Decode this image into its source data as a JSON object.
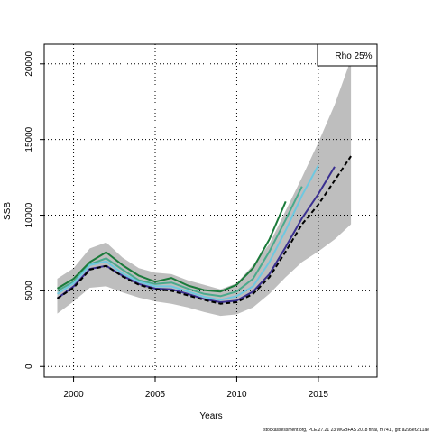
{
  "chart_data": {
    "type": "line",
    "title": "",
    "xlabel": "Years",
    "ylabel": "SSB",
    "xlim": [
      1998.2,
      2018.6
    ],
    "ylim": [
      -700,
      21300
    ],
    "grid": true,
    "x_ticks": [
      2000,
      2005,
      2010,
      2015
    ],
    "y_ticks": [
      0,
      5000,
      10000,
      15000,
      20000
    ],
    "legend": {
      "text": "Rho 25%",
      "position": "top-right"
    },
    "band": {
      "color": "#bebebe",
      "x": [
        1999,
        2000,
        2001,
        2002,
        2003,
        2004,
        2005,
        2006,
        2007,
        2008,
        2009,
        2010,
        2011,
        2012,
        2013,
        2014,
        2015,
        2016,
        2017
      ],
      "lower": [
        3500,
        4300,
        5200,
        5300,
        4900,
        4550,
        4300,
        4150,
        3900,
        3600,
        3350,
        3450,
        3900,
        4800,
        5900,
        6900,
        7600,
        8400,
        9400
      ],
      "upper": [
        5800,
        6500,
        7800,
        8200,
        7200,
        6500,
        6200,
        6100,
        5700,
        5400,
        5100,
        5500,
        6700,
        8100,
        10300,
        12500,
        14800,
        17300,
        20300
      ]
    },
    "series": [
      {
        "color": "#1a7a3a",
        "x": [
          1999,
          2000,
          2001,
          2002,
          2003,
          2004,
          2005,
          2006,
          2007,
          2008,
          2009,
          2010,
          2011,
          2012,
          2013
        ],
        "values": [
          5150,
          5800,
          6900,
          7550,
          6700,
          6000,
          5600,
          5850,
          5350,
          5050,
          4950,
          5400,
          6500,
          8400,
          10900
        ]
      },
      {
        "color": "#4aaa8c",
        "x": [
          1999,
          2000,
          2001,
          2002,
          2003,
          2004,
          2005,
          2006,
          2007,
          2008,
          2009,
          2010,
          2011,
          2012,
          2013,
          2014
        ],
        "values": [
          5000,
          5600,
          6750,
          7150,
          6400,
          5700,
          5450,
          5550,
          5150,
          4800,
          4650,
          4950,
          5800,
          7600,
          9700,
          11900
        ]
      },
      {
        "color": "#6ec8e0",
        "x": [
          1999,
          2000,
          2001,
          2002,
          2003,
          2004,
          2005,
          2006,
          2007,
          2008,
          2009,
          2010,
          2011,
          2012,
          2013,
          2014,
          2015
        ],
        "values": [
          4800,
          5500,
          6700,
          6950,
          6150,
          5600,
          5300,
          5300,
          4950,
          4600,
          4400,
          4650,
          5300,
          6900,
          9000,
          11300,
          13300
        ]
      },
      {
        "color": "#3a2f90",
        "x": [
          1999,
          2000,
          2001,
          2002,
          2003,
          2004,
          2005,
          2006,
          2007,
          2008,
          2009,
          2010,
          2011,
          2012,
          2013,
          2014,
          2015,
          2016
        ],
        "values": [
          4500,
          5300,
          6450,
          6650,
          6000,
          5450,
          5150,
          5100,
          4800,
          4450,
          4250,
          4350,
          4950,
          6100,
          7900,
          9800,
          11400,
          13200
        ]
      },
      {
        "color": "#000000",
        "dashed": true,
        "x": [
          1999,
          2000,
          2001,
          2002,
          2003,
          2004,
          2005,
          2006,
          2007,
          2008,
          2009,
          2010,
          2011,
          2012,
          2013,
          2014,
          2015,
          2016,
          2017
        ],
        "values": [
          4500,
          5200,
          6400,
          6650,
          5950,
          5400,
          5100,
          5000,
          4700,
          4400,
          4150,
          4250,
          4800,
          5900,
          7600,
          9400,
          10700,
          12300,
          13900
        ]
      }
    ],
    "footer": "stockassessment.org,  PLE.27.21  23  WGBFAS  2018  final,  r9741  ,  git:  a295ef2f11ae"
  }
}
